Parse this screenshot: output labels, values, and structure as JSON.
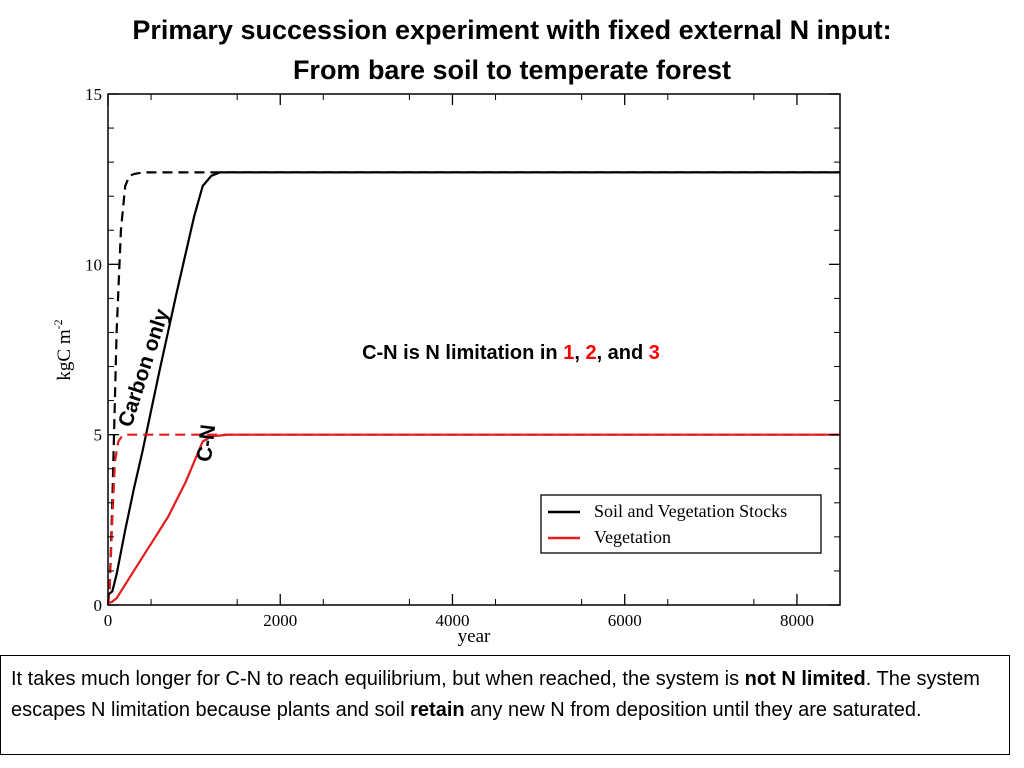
{
  "title": {
    "line1": "Primary succession experiment with fixed external N input:",
    "line2": "From bare soil to temperate forest"
  },
  "annotations": {
    "carbon_only": "Carbon only",
    "cn": "C-N",
    "limitation_prefix": "C-N is N limitation in ",
    "n1": "1",
    "sep1": ", ",
    "n2": "2",
    "sep2": ", and ",
    "n3": "3"
  },
  "caption": {
    "t1": "It takes much longer for C-N to reach equilibrium, but when reached, the system is ",
    "b1": "not N limited",
    "t2": ". The system escapes N limitation because plants and soil ",
    "b2": "retain",
    "t3": " any new N from deposition until they are saturated."
  },
  "colors": {
    "black_series": "#000000",
    "red_series": "#e41a1c",
    "annotation_red": "#ff0000"
  },
  "chart_data": {
    "type": "line",
    "xlabel": "year",
    "ylabel": "kgC m",
    "ylabel_sup": "-2",
    "xlim": [
      0,
      8500
    ],
    "ylim": [
      0,
      15
    ],
    "x_ticks": [
      0,
      2000,
      4000,
      6000,
      8000
    ],
    "x_tick_labels": [
      "0",
      "2000",
      "4000",
      "6000",
      "8000"
    ],
    "y_ticks": [
      0,
      5,
      10,
      15
    ],
    "y_tick_labels": [
      "0",
      "5",
      "10",
      "15"
    ],
    "legend": {
      "position": "bottom-right",
      "entries": [
        {
          "label": "Soil and Vegetation Stocks",
          "color": "#000000"
        },
        {
          "label": "Vegetation",
          "color": "#e41a1c"
        }
      ]
    },
    "series": [
      {
        "legend_entry": "Soil and Vegetation Stocks",
        "model": "Carbon only",
        "color": "#000000",
        "dash": true,
        "x": [
          0,
          20,
          50,
          100,
          150,
          200,
          250,
          300,
          400,
          600,
          1000,
          1400,
          8500
        ],
        "y": [
          0,
          0.5,
          3.0,
          8.0,
          11.0,
          12.3,
          12.6,
          12.65,
          12.7,
          12.7,
          12.7,
          12.7,
          12.7
        ]
      },
      {
        "legend_entry": "Soil and Vegetation Stocks",
        "model": "C-N",
        "color": "#000000",
        "dash": false,
        "x": [
          0,
          50,
          100,
          200,
          300,
          400,
          600,
          800,
          1000,
          1100,
          1200,
          1300,
          1400,
          1600,
          8500
        ],
        "y": [
          0.3,
          0.4,
          0.9,
          2.2,
          3.4,
          4.5,
          6.9,
          9.2,
          11.4,
          12.3,
          12.6,
          12.7,
          12.7,
          12.7,
          12.7
        ]
      },
      {
        "legend_entry": "Vegetation",
        "model": "Carbon only",
        "color": "#e41a1c",
        "dash": true,
        "x": [
          0,
          20,
          50,
          80,
          120,
          160,
          200,
          300,
          500,
          8500
        ],
        "y": [
          0,
          0.5,
          2.5,
          4.2,
          4.8,
          4.95,
          5.0,
          5.0,
          5.0,
          5.0
        ]
      },
      {
        "legend_entry": "Vegetation",
        "model": "C-N",
        "color": "#e41a1c",
        "dash": false,
        "x": [
          0,
          50,
          100,
          200,
          300,
          400,
          500,
          600,
          700,
          800,
          900,
          1000,
          1100,
          1200,
          1400,
          8500
        ],
        "y": [
          0.05,
          0.1,
          0.2,
          0.6,
          1.0,
          1.4,
          1.8,
          2.2,
          2.6,
          3.1,
          3.6,
          4.2,
          4.8,
          4.95,
          5.0,
          5.0
        ]
      }
    ]
  }
}
